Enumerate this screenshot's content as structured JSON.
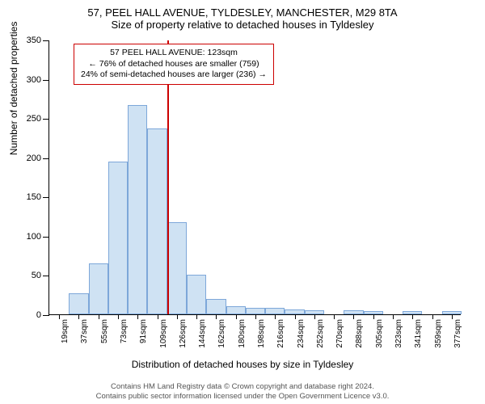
{
  "title": {
    "line1": "57, PEEL HALL AVENUE, TYLDESLEY, MANCHESTER, M29 8TA",
    "line2": "Size of property relative to detached houses in Tyldesley"
  },
  "chart": {
    "type": "histogram",
    "ylabel": "Number of detached properties",
    "xlabel": "Distribution of detached houses by size in Tyldesley",
    "ylim": [
      0,
      350
    ],
    "ytick_step": 50,
    "background_color": "#ffffff",
    "bar_fill": "#cfe2f3",
    "bar_stroke": "#7da7d9",
    "marker_color": "#cc0000",
    "marker_x_index": 6,
    "categories": [
      "19sqm",
      "37sqm",
      "55sqm",
      "73sqm",
      "91sqm",
      "109sqm",
      "126sqm",
      "144sqm",
      "162sqm",
      "180sqm",
      "198sqm",
      "216sqm",
      "234sqm",
      "252sqm",
      "270sqm",
      "288sqm",
      "305sqm",
      "323sqm",
      "341sqm",
      "359sqm",
      "377sqm"
    ],
    "values": [
      0,
      27,
      65,
      195,
      267,
      237,
      117,
      50,
      20,
      10,
      8,
      8,
      6,
      5,
      0,
      5,
      4,
      0,
      4,
      0,
      4
    ]
  },
  "callout": {
    "line1": "57 PEEL HALL AVENUE: 123sqm",
    "line2": "← 76% of detached houses are smaller (759)",
    "line3": "24% of semi-detached houses are larger (236) →"
  },
  "footer": {
    "line1": "Contains HM Land Registry data © Crown copyright and database right 2024.",
    "line2": "Contains public sector information licensed under the Open Government Licence v3.0."
  }
}
